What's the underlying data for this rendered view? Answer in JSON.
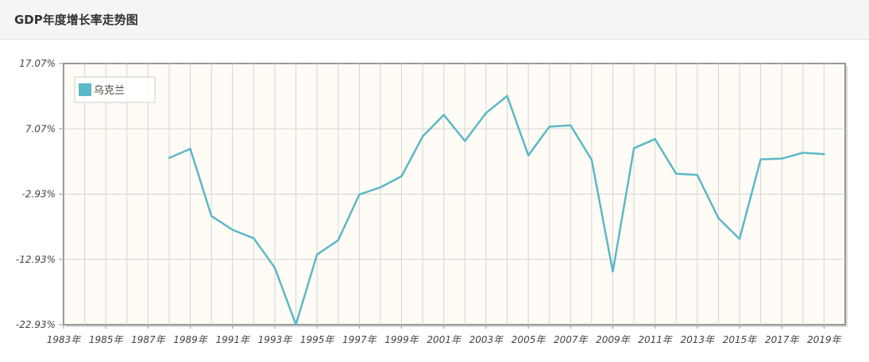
{
  "header": {
    "title": "GDP年度增长率走势图"
  },
  "chart_data": {
    "type": "line",
    "title": "",
    "xlabel": "",
    "ylabel": "",
    "x_tick_labels": [
      "1983年",
      "1985年",
      "1987年",
      "1989年",
      "1991年",
      "1993年",
      "1995年",
      "1997年",
      "1999年",
      "2001年",
      "2003年",
      "2005年",
      "2007年",
      "2009年",
      "2011年",
      "2013年",
      "2015年",
      "2017年",
      "2019年"
    ],
    "y_tick_labels": [
      "17.07%",
      "7.07%",
      "-2.93%",
      "-12.93%",
      "-22.93%"
    ],
    "ylim": [
      -22.93,
      17.07
    ],
    "xlim": [
      1983,
      2020
    ],
    "grid": true,
    "legend_position": "top-left",
    "series": [
      {
        "name": "乌克兰",
        "color": "#5bb8c8",
        "x": [
          1988,
          1989,
          1990,
          1991,
          1992,
          1993,
          1994,
          1995,
          1996,
          1997,
          1998,
          1999,
          2000,
          2001,
          2002,
          2003,
          2004,
          2005,
          2006,
          2007,
          2008,
          2009,
          2010,
          2011,
          2012,
          2013,
          2014,
          2015,
          2016,
          2017,
          2018,
          2019
        ],
        "y": [
          2.6,
          4.0,
          -6.3,
          -8.4,
          -9.7,
          -14.2,
          -22.9,
          -12.2,
          -10.0,
          -3.0,
          -1.9,
          -0.2,
          5.9,
          9.2,
          5.2,
          9.5,
          12.1,
          3.0,
          7.4,
          7.6,
          2.3,
          -14.8,
          4.1,
          5.5,
          0.2,
          0.0,
          -6.6,
          -9.8,
          2.4,
          2.5,
          3.4,
          3.2
        ]
      }
    ]
  }
}
